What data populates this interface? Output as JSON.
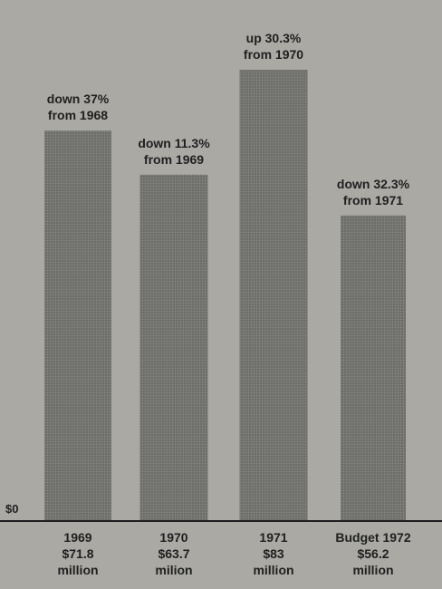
{
  "colors": {
    "background": "#aaa9a4",
    "bar": "#6f6f6b",
    "ink": "#1f1f1f"
  },
  "chart_data": {
    "type": "bar",
    "title": "",
    "xlabel": "",
    "ylabel": "",
    "zero_label": "$0",
    "ylim": [
      0,
      90
    ],
    "grid": false,
    "legend": "none",
    "categories": [
      "1969",
      "1970",
      "1971",
      "Budget 1972"
    ],
    "values": [
      71.8,
      63.7,
      83,
      56.2
    ],
    "value_unit": "million",
    "bar_labels": [
      [
        "1969",
        "$71.8",
        "million"
      ],
      [
        "1970",
        "$63.7",
        "milion"
      ],
      [
        "1971",
        "$83",
        "million"
      ],
      [
        "Budget 1972",
        "$56.2",
        "million"
      ]
    ],
    "annotations": [
      [
        "down 37%",
        "from 1968"
      ],
      [
        "down 11.3%",
        "from 1969"
      ],
      [
        "up 30.3%",
        "from 1970"
      ],
      [
        "down 32.3%",
        "from 1971"
      ]
    ]
  }
}
